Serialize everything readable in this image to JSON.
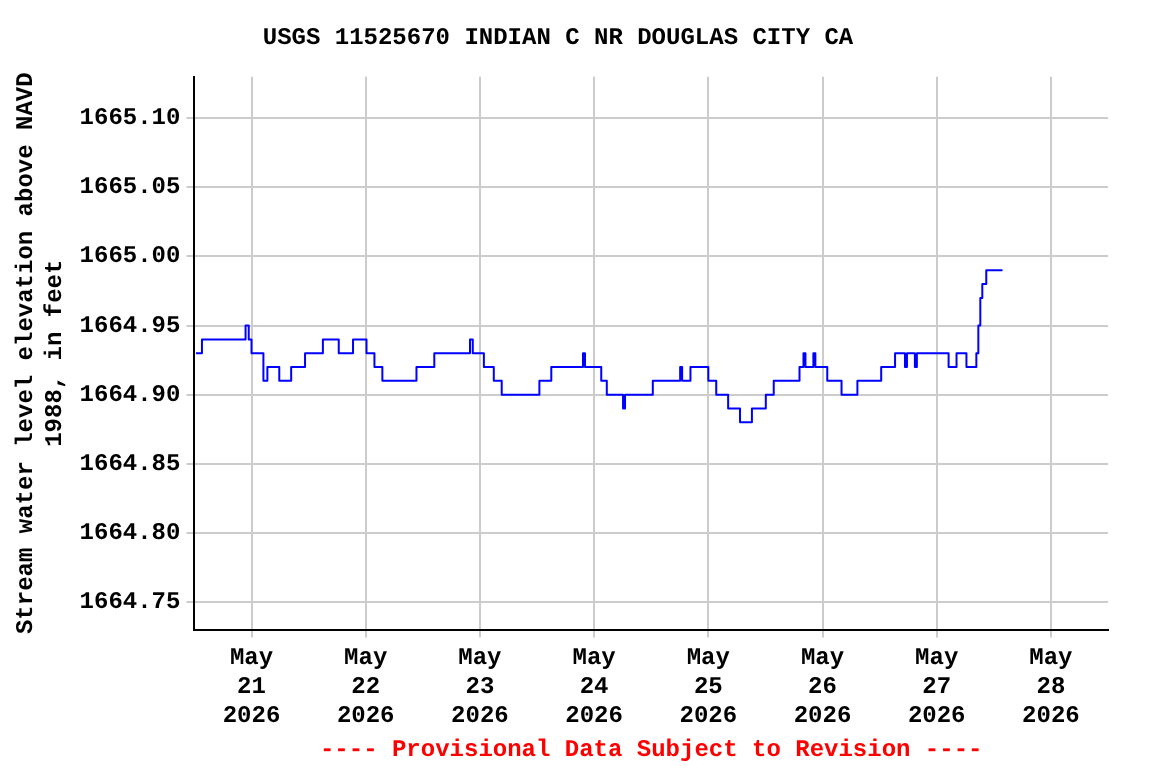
{
  "chart_data": {
    "type": "step",
    "title": "USGS 11525670 INDIAN C NR DOUGLAS CITY CA",
    "ylabel": "Stream water level elevation above NAVD 1988, in feet",
    "annotations": [
      "---- Provisional Data Subject to Revision ----"
    ],
    "xlim": [
      "2026-05-20T12:00",
      "2026-05-28T12:00"
    ],
    "xticks": [
      {
        "value": "2026-05-21",
        "label": "May 21 2026"
      },
      {
        "value": "2026-05-22",
        "label": "May 22 2026"
      },
      {
        "value": "2026-05-23",
        "label": "May 23 2026"
      },
      {
        "value": "2026-05-24",
        "label": "May 24 2026"
      },
      {
        "value": "2026-05-25",
        "label": "May 25 2026"
      },
      {
        "value": "2026-05-26",
        "label": "May 26 2026"
      },
      {
        "value": "2026-05-27",
        "label": "May 27 2026"
      },
      {
        "value": "2026-05-28",
        "label": "May 28 2026"
      }
    ],
    "ylim": [
      1664.73,
      1665.13
    ],
    "yticks": [
      {
        "value": 1664.75,
        "label": "1664.75"
      },
      {
        "value": 1664.8,
        "label": "1664.80"
      },
      {
        "value": 1664.85,
        "label": "1664.85"
      },
      {
        "value": 1664.9,
        "label": "1664.90"
      },
      {
        "value": 1664.95,
        "label": "1664.95"
      },
      {
        "value": 1665.0,
        "label": "1665.00"
      },
      {
        "value": 1665.05,
        "label": "1665.05"
      },
      {
        "value": 1665.1,
        "label": "1665.10"
      }
    ],
    "grid": true,
    "legend": false,
    "marker": "none",
    "line_style": "solid",
    "x": [
      "2026-05-20T12:20",
      "2026-05-20T13:35",
      "2026-05-20T22:45",
      "2026-05-20T23:25",
      "2026-05-21T00:00",
      "2026-05-21T02:30",
      "2026-05-21T03:20",
      "2026-05-21T05:50",
      "2026-05-21T08:20",
      "2026-05-21T11:15",
      "2026-05-21T15:00",
      "2026-05-21T18:20",
      "2026-05-21T21:20",
      "2026-05-22T00:10",
      "2026-05-22T01:50",
      "2026-05-22T03:30",
      "2026-05-22T10:40",
      "2026-05-22T14:25",
      "2026-05-22T21:55",
      "2026-05-22T22:30",
      "2026-05-23T00:50",
      "2026-05-23T02:55",
      "2026-05-23T04:35",
      "2026-05-23T12:30",
      "2026-05-23T15:00",
      "2026-05-23T21:40",
      "2026-05-23T22:05",
      "2026-05-24T01:30",
      "2026-05-24T02:40",
      "2026-05-24T06:05",
      "2026-05-24T06:30",
      "2026-05-24T12:20",
      "2026-05-24T18:05",
      "2026-05-24T18:30",
      "2026-05-24T20:15",
      "2026-05-25T00:00",
      "2026-05-25T01:40",
      "2026-05-25T04:10",
      "2026-05-25T06:40",
      "2026-05-25T09:10",
      "2026-05-25T12:05",
      "2026-05-25T13:45",
      "2026-05-25T19:10",
      "2026-05-25T20:00",
      "2026-05-25T20:25",
      "2026-05-25T22:05",
      "2026-05-25T22:30",
      "2026-05-26T01:00",
      "2026-05-26T04:00",
      "2026-05-26T07:20",
      "2026-05-26T12:20",
      "2026-05-26T15:15",
      "2026-05-26T17:20",
      "2026-05-26T17:45",
      "2026-05-26T19:25",
      "2026-05-26T19:50",
      "2026-05-27T02:30",
      "2026-05-27T04:10",
      "2026-05-27T06:15",
      "2026-05-27T08:20",
      "2026-05-27T08:45",
      "2026-05-27T09:10",
      "2026-05-27T09:35",
      "2026-05-27T10:25",
      "2026-05-27T13:50"
    ],
    "series": [
      {
        "color": "#0000ff",
        "values": [
          1664.93,
          1664.94,
          1664.95,
          1664.94,
          1664.93,
          1664.91,
          1664.92,
          1664.91,
          1664.92,
          1664.93,
          1664.94,
          1664.93,
          1664.94,
          1664.93,
          1664.92,
          1664.91,
          1664.92,
          1664.93,
          1664.94,
          1664.93,
          1664.92,
          1664.91,
          1664.9,
          1664.91,
          1664.92,
          1664.93,
          1664.92,
          1664.91,
          1664.9,
          1664.89,
          1664.9,
          1664.91,
          1664.92,
          1664.91,
          1664.92,
          1664.91,
          1664.9,
          1664.89,
          1664.88,
          1664.89,
          1664.9,
          1664.91,
          1664.92,
          1664.93,
          1664.92,
          1664.93,
          1664.92,
          1664.91,
          1664.9,
          1664.91,
          1664.92,
          1664.93,
          1664.92,
          1664.93,
          1664.92,
          1664.93,
          1664.92,
          1664.93,
          1664.92,
          1664.93,
          1664.95,
          1664.97,
          1664.98,
          1664.99,
          1664.99
        ]
      }
    ]
  }
}
